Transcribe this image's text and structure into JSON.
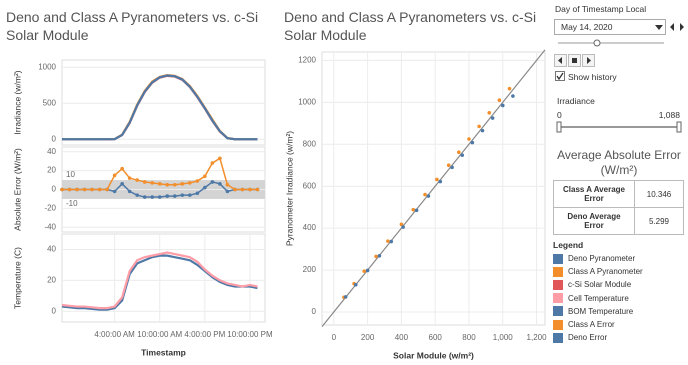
{
  "chart_data": [
    {
      "type": "line",
      "title": "Deno and Class A Pyranometers vs. c-Si Solar Module",
      "ylabel": "Irradiance (w/m²)",
      "x": [
        -3,
        -2,
        -1,
        0,
        1,
        2,
        3,
        4,
        5,
        6,
        7,
        8,
        9,
        10,
        11,
        12,
        13,
        14,
        15,
        16,
        17,
        18,
        19,
        20,
        21,
        22,
        23
      ],
      "xlim": [
        -3,
        24
      ],
      "ylim": [
        -80,
        1100
      ],
      "yticks": [
        0,
        500,
        1000
      ],
      "grid": true,
      "series": [
        {
          "name": "Deno Pyranometer",
          "color": "#4e79a7",
          "values": [
            0,
            0,
            0,
            0,
            0,
            0,
            0,
            2,
            60,
            230,
            470,
            660,
            790,
            860,
            885,
            875,
            830,
            730,
            590,
            430,
            260,
            110,
            15,
            0,
            0,
            0,
            0
          ]
        },
        {
          "name": "Class A Pyranometer",
          "color": "#f28e2b",
          "values": [
            0,
            0,
            0,
            0,
            0,
            0,
            0,
            3,
            65,
            240,
            480,
            670,
            800,
            865,
            890,
            880,
            835,
            740,
            600,
            440,
            275,
            115,
            18,
            0,
            0,
            0,
            0
          ]
        },
        {
          "name": "c-Si Solar Module",
          "color": "#e15759",
          "values": [
            0,
            0,
            0,
            0,
            0,
            0,
            0,
            1,
            58,
            225,
            465,
            655,
            785,
            855,
            880,
            870,
            825,
            725,
            585,
            425,
            255,
            105,
            14,
            0,
            0,
            0,
            0
          ]
        }
      ]
    },
    {
      "type": "line",
      "ylabel": "Absolute Error (W/m²)",
      "markers": true,
      "x": [
        -3,
        -2,
        -1,
        0,
        1,
        2,
        3,
        4,
        5,
        6,
        7,
        8,
        9,
        10,
        11,
        12,
        13,
        14,
        15,
        16,
        17,
        18,
        19,
        20,
        21,
        22,
        23
      ],
      "xlim": [
        -3,
        24
      ],
      "ylim": [
        -45,
        45
      ],
      "yticks": [
        -40,
        -20,
        0,
        20,
        40
      ],
      "grid": true,
      "reference_band": [
        10,
        -10
      ],
      "series": [
        {
          "name": "Class A Error",
          "color": "#f28e2b",
          "values": [
            0,
            0,
            0,
            0,
            0,
            0,
            0,
            15,
            22,
            12,
            10,
            8,
            7,
            6,
            5,
            5,
            6,
            7,
            9,
            14,
            28,
            33,
            5,
            0,
            0,
            0,
            0
          ]
        },
        {
          "name": "Deno Error",
          "color": "#4e79a7",
          "values": [
            0,
            0,
            0,
            0,
            0,
            0,
            0,
            -2,
            6,
            -2,
            -6,
            -8,
            -8,
            -8,
            -7,
            -7,
            -6,
            -6,
            -4,
            2,
            8,
            6,
            -2,
            0,
            0,
            0,
            0
          ]
        }
      ]
    },
    {
      "type": "line",
      "ylabel": "Temperature (C)",
      "xlabel": "Timestamp",
      "x": [
        -3,
        -2,
        -1,
        0,
        1,
        2,
        3,
        4,
        5,
        6,
        7,
        8,
        9,
        10,
        11,
        12,
        13,
        14,
        15,
        16,
        17,
        18,
        19,
        20,
        21,
        22,
        23
      ],
      "xlim": [
        -3,
        24
      ],
      "ylim": [
        -7,
        50
      ],
      "yticks": [
        0,
        20,
        40
      ],
      "grid": true,
      "xticks": [
        {
          "value": 4,
          "label": "4:00:00 AM"
        },
        {
          "value": 10,
          "label": "10:00:00 AM"
        },
        {
          "value": 16,
          "label": "4:00:00 PM"
        },
        {
          "value": 22,
          "label": "10:00:00 PM"
        }
      ],
      "series": [
        {
          "name": "Cell Temperature",
          "color": "#ff9da7",
          "values": [
            4,
            3.5,
            3,
            3,
            2.5,
            2,
            2,
            3,
            9,
            26,
            33,
            35,
            36,
            37,
            38,
            37,
            36,
            35,
            32,
            27,
            23,
            20,
            18,
            17,
            16,
            17,
            16
          ]
        },
        {
          "name": "BOM Temperature",
          "color": "#4e79a7",
          "values": [
            3,
            2.5,
            2,
            2,
            1.5,
            1,
            1,
            2,
            7,
            24,
            31,
            33,
            35,
            36,
            36,
            35,
            34,
            33,
            30,
            26,
            22,
            19,
            17,
            16,
            16,
            16,
            15
          ]
        }
      ]
    },
    {
      "type": "scatter",
      "title": "Deno and Class A Pyranometers vs. c-Si Solar Module",
      "xlabel": "Solar Module (w/m²)",
      "ylabel": "Pyranometer Irradiance (w/m²)",
      "xlim": [
        -70,
        1250
      ],
      "ylim": [
        -62,
        1240
      ],
      "xticks": [
        0,
        200,
        400,
        600,
        800,
        {
          "value": 1000,
          "label": "1,000"
        },
        {
          "value": 1200,
          "label": "1,200"
        }
      ],
      "yticks": [
        0,
        200,
        400,
        600,
        800,
        1000,
        1200
      ],
      "grid": true,
      "series": [
        {
          "name": "Class A Pyranometer",
          "color": "#f28e2b",
          "x": [
            60,
            120,
            180,
            250,
            320,
            400,
            470,
            540,
            610,
            680,
            740,
            800,
            860,
            920,
            980,
            1040
          ],
          "values": [
            70,
            135,
            195,
            265,
            338,
            418,
            488,
            560,
            632,
            700,
            762,
            825,
            885,
            950,
            1010,
            1065
          ]
        },
        {
          "name": "Deno Pyranometer",
          "color": "#4e79a7",
          "x": [
            70,
            130,
            200,
            270,
            340,
            410,
            490,
            560,
            630,
            700,
            760,
            820,
            880,
            940,
            1000,
            1060
          ],
          "values": [
            72,
            130,
            198,
            268,
            336,
            405,
            485,
            553,
            622,
            690,
            748,
            808,
            865,
            925,
            985,
            1030
          ]
        }
      ]
    }
  ],
  "controls": {
    "day_label": "Day of Timestamp Local",
    "day_value": "May 14, 2020",
    "show_history": "Show history",
    "irradiance_label": "Irradiance",
    "irradiance_min": "0",
    "irradiance_max": "1,088"
  },
  "error_table": {
    "title": "Average Absolute Error (W/m²)",
    "rows": [
      [
        "Class A Average Error",
        "10.346"
      ],
      [
        "Deno Average Error",
        "5.299"
      ]
    ]
  },
  "legend_title": "Legend"
}
